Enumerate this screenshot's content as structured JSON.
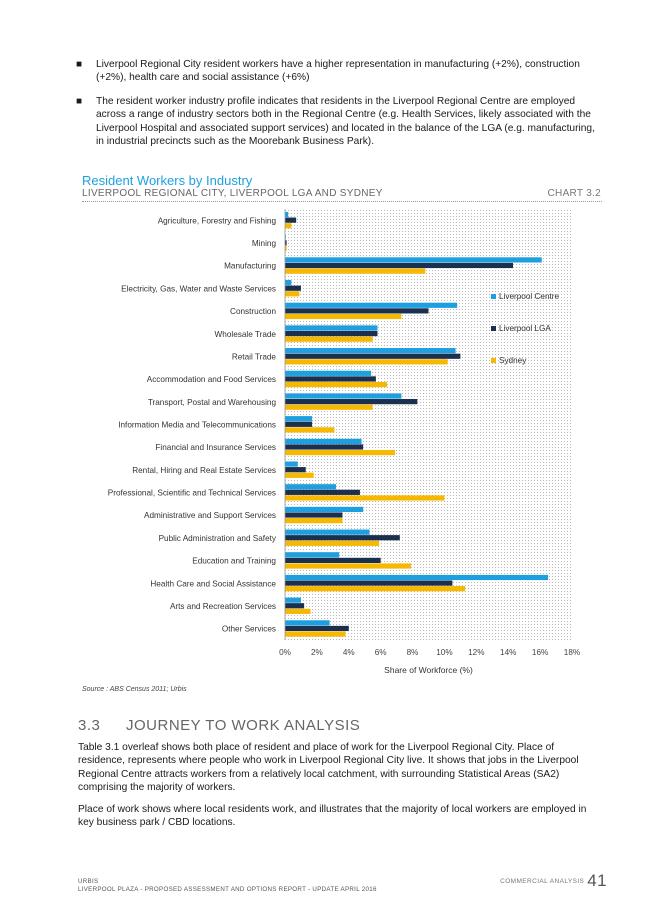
{
  "bullets": [
    "Liverpool Regional City resident workers have a higher representation in manufacturing (+2%), construction (+2%), health care and social assistance (+6%)",
    "The resident worker industry profile indicates that residents in the Liverpool Regional Centre are employed across a range of industry sectors both in the Regional Centre (e.g. Health Services, likely associated with the Liverpool Hospital and associated support services) and located in the balance of the LGA (e.g. manufacturing, in industrial precincts such as the Moorebank Business Park)."
  ],
  "chart_data": {
    "type": "bar",
    "orientation": "horizontal",
    "title": "Resident Workers by Industry",
    "subtitle": "LIVERPOOL REGIONAL CITY, LIVERPOOL LGA AND SYDNEY",
    "chart_number": "CHART 3.2",
    "xlabel": "Share of Workforce (%)",
    "ylabel": "",
    "xlim": [
      0,
      18
    ],
    "xticks": [
      "0%",
      "2%",
      "4%",
      "6%",
      "8%",
      "10%",
      "12%",
      "14%",
      "16%",
      "18%"
    ],
    "legend_position": "right",
    "categories": [
      "Agriculture, Forestry and Fishing",
      "Mining",
      "Manufacturing",
      "Electricity, Gas, Water and Waste Services",
      "Construction",
      "Wholesale Trade",
      "Retail Trade",
      "Accommodation and Food Services",
      "Transport, Postal and Warehousing",
      "Information Media and Telecommunications",
      "Financial and Insurance Services",
      "Rental, Hiring and Real Estate Services",
      "Professional, Scientific and Technical Services",
      "Administrative and Support Services",
      "Public Administration and Safety",
      "Education and Training",
      "Health Care and Social Assistance",
      "Arts and Recreation Services",
      "Other Services"
    ],
    "series": [
      {
        "name": "Liverpool Centre",
        "color": "#1e9fe0",
        "values": [
          0.2,
          0.05,
          16.1,
          0.4,
          10.8,
          5.8,
          10.7,
          5.4,
          7.3,
          1.7,
          4.8,
          0.8,
          3.2,
          4.9,
          5.3,
          3.4,
          16.5,
          1.0,
          2.8
        ]
      },
      {
        "name": "Liverpool LGA",
        "color": "#1b2f4f",
        "values": [
          0.7,
          0.1,
          14.3,
          1.0,
          9.0,
          5.8,
          11.0,
          5.7,
          8.3,
          1.7,
          4.9,
          1.3,
          4.7,
          3.6,
          7.2,
          6.0,
          10.5,
          1.2,
          4.0
        ]
      },
      {
        "name": "Sydney",
        "color": "#f6b800",
        "values": [
          0.4,
          0.1,
          8.8,
          0.9,
          7.3,
          5.5,
          10.2,
          6.4,
          5.5,
          3.1,
          6.9,
          1.8,
          10.0,
          3.6,
          5.9,
          7.9,
          11.3,
          1.6,
          3.8
        ]
      }
    ]
  },
  "source": "Source : ABS Census 2011; Urbis",
  "section": {
    "number": "3.3",
    "title": "JOURNEY TO WORK ANALYSIS"
  },
  "paragraphs": [
    "Table 3.1 overleaf shows both place of resident and place of work for the Liverpool Regional City. Place of residence, represents where people who work in Liverpool Regional City live. It shows that jobs in the Liverpool Regional Centre attracts workers from a relatively local catchment, with surrounding Statistical Areas (SA2) comprising the majority of workers.",
    "Place of work shows where local residents work, and illustrates that the majority of local workers are employed in key business park / CBD locations."
  ],
  "footer": {
    "left_line1": "URBIS",
    "left_line2": "LIVERPOOL PLAZA - PROPOSED ASSESSMENT AND OPTIONS REPORT - UPDATE APRIL 2016",
    "right_label": "COMMERCIAL ANALYSIS",
    "page_number": "41"
  }
}
